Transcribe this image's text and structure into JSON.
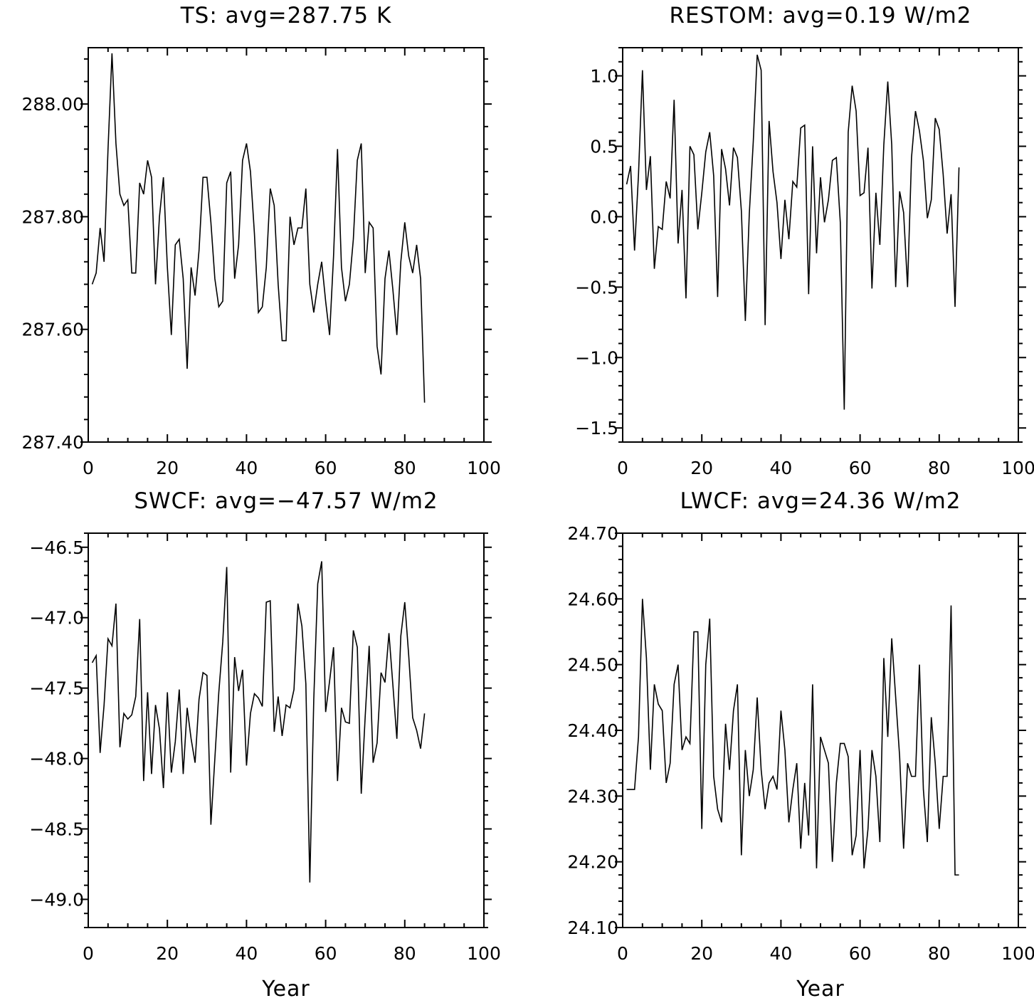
{
  "chart_data": [
    {
      "type": "line",
      "title": "TS: avg=287.75 K",
      "xlabel": "",
      "ylabel": "",
      "xlim": [
        0,
        100
      ],
      "ylim": [
        287.4,
        288.1
      ],
      "xticks": [
        0,
        20,
        40,
        60,
        80,
        100
      ],
      "xtick_labels": [
        "0",
        "20",
        "40",
        "60",
        "80",
        "100"
      ],
      "yticks": [
        287.4,
        287.6,
        287.8,
        288.0
      ],
      "ytick_labels": [
        "287.40",
        "287.60",
        "287.80",
        "288.00"
      ],
      "x_start": 1,
      "values": [
        287.68,
        287.7,
        287.78,
        287.72,
        287.92,
        288.09,
        287.93,
        287.84,
        287.82,
        287.83,
        287.7,
        287.7,
        287.86,
        287.84,
        287.9,
        287.87,
        287.68,
        287.8,
        287.87,
        287.71,
        287.59,
        287.75,
        287.76,
        287.69,
        287.53,
        287.71,
        287.66,
        287.74,
        287.87,
        287.87,
        287.79,
        287.69,
        287.64,
        287.65,
        287.86,
        287.88,
        287.69,
        287.75,
        287.9,
        287.93,
        287.88,
        287.77,
        287.63,
        287.64,
        287.71,
        287.85,
        287.82,
        287.68,
        287.58,
        287.58,
        287.8,
        287.75,
        287.78,
        287.78,
        287.85,
        287.68,
        287.63,
        287.68,
        287.72,
        287.65,
        287.59,
        287.73,
        287.92,
        287.71,
        287.65,
        287.68,
        287.76,
        287.9,
        287.93,
        287.7,
        287.79,
        287.78,
        287.57,
        287.52,
        287.69,
        287.74,
        287.67,
        287.59,
        287.72,
        287.79,
        287.73,
        287.7,
        287.75,
        287.69,
        287.47
      ]
    },
    {
      "type": "line",
      "title": "RESTOM: avg=0.19 W/m2",
      "xlabel": "",
      "ylabel": "",
      "xlim": [
        0,
        100
      ],
      "ylim": [
        -1.6,
        1.2
      ],
      "xticks": [
        0,
        20,
        40,
        60,
        80,
        100
      ],
      "xtick_labels": [
        "0",
        "20",
        "40",
        "60",
        "80",
        "100"
      ],
      "yticks": [
        -1.5,
        -1.0,
        -0.5,
        0.0,
        0.5,
        1.0
      ],
      "ytick_labels": [
        "−1.5",
        "−1.0",
        "−0.5",
        "0.0",
        "0.5",
        "1.0"
      ],
      "x_start": 1,
      "values": [
        0.23,
        0.36,
        -0.24,
        0.3,
        1.04,
        0.19,
        0.43,
        -0.37,
        -0.07,
        -0.09,
        0.25,
        0.13,
        0.83,
        -0.19,
        0.19,
        -0.58,
        0.5,
        0.44,
        -0.09,
        0.17,
        0.46,
        0.6,
        0.29,
        -0.57,
        0.48,
        0.34,
        0.08,
        0.49,
        0.42,
        0.04,
        -0.74,
        0.02,
        0.53,
        1.15,
        1.04,
        -0.77,
        0.68,
        0.32,
        0.1,
        -0.3,
        0.12,
        -0.16,
        0.25,
        0.21,
        0.63,
        0.65,
        -0.55,
        0.5,
        -0.26,
        0.28,
        -0.04,
        0.12,
        0.4,
        0.42,
        -0.04,
        -1.37,
        0.6,
        0.93,
        0.75,
        0.15,
        0.17,
        0.49,
        -0.51,
        0.17,
        -0.2,
        0.51,
        0.96,
        0.51,
        -0.5,
        0.18,
        0.03,
        -0.5,
        0.42,
        0.75,
        0.61,
        0.4,
        -0.01,
        0.12,
        0.7,
        0.62,
        0.3,
        -0.12,
        0.16,
        -0.64,
        0.35
      ]
    },
    {
      "type": "line",
      "title": "SWCF: avg=−47.57 W/m2",
      "xlabel": "Year",
      "ylabel": "",
      "xlim": [
        0,
        100
      ],
      "ylim": [
        -49.2,
        -46.4
      ],
      "xticks": [
        0,
        20,
        40,
        60,
        80,
        100
      ],
      "xtick_labels": [
        "0",
        "20",
        "40",
        "60",
        "80",
        "100"
      ],
      "yticks": [
        -49.0,
        -48.5,
        -48.0,
        -47.5,
        -47.0,
        -46.5
      ],
      "ytick_labels": [
        "−49.0",
        "−48.5",
        "−48.0",
        "−47.5",
        "−47.0",
        "−46.5"
      ],
      "x_start": 1,
      "values": [
        -47.32,
        -47.27,
        -47.96,
        -47.62,
        -47.15,
        -47.2,
        -46.9,
        -47.92,
        -47.68,
        -47.72,
        -47.69,
        -47.56,
        -47.01,
        -48.16,
        -47.53,
        -48.11,
        -47.62,
        -47.79,
        -48.21,
        -47.53,
        -48.1,
        -47.88,
        -47.51,
        -48.11,
        -47.64,
        -47.86,
        -48.03,
        -47.58,
        -47.39,
        -47.41,
        -48.47,
        -48.0,
        -47.53,
        -47.17,
        -46.64,
        -48.1,
        -47.28,
        -47.52,
        -47.37,
        -48.05,
        -47.68,
        -47.54,
        -47.57,
        -47.63,
        -46.89,
        -46.88,
        -47.81,
        -47.56,
        -47.84,
        -47.62,
        -47.64,
        -47.51,
        -46.9,
        -47.06,
        -47.47,
        -48.88,
        -47.58,
        -46.76,
        -46.6,
        -47.67,
        -47.45,
        -47.21,
        -48.16,
        -47.64,
        -47.74,
        -47.75,
        -47.09,
        -47.21,
        -48.25,
        -47.7,
        -47.2,
        -48.03,
        -47.89,
        -47.39,
        -47.46,
        -47.11,
        -47.48,
        -47.86,
        -47.13,
        -46.89,
        -47.27,
        -47.71,
        -47.8,
        -47.93,
        -47.68
      ]
    },
    {
      "type": "line",
      "title": "LWCF: avg=24.36 W/m2",
      "xlabel": "Year",
      "ylabel": "",
      "xlim": [
        0,
        100
      ],
      "ylim": [
        24.1,
        24.7
      ],
      "xticks": [
        0,
        20,
        40,
        60,
        80,
        100
      ],
      "xtick_labels": [
        "0",
        "20",
        "40",
        "60",
        "80",
        "100"
      ],
      "yticks": [
        24.1,
        24.2,
        24.3,
        24.4,
        24.5,
        24.6,
        24.7
      ],
      "ytick_labels": [
        "24.10",
        "24.20",
        "24.30",
        "24.40",
        "24.50",
        "24.60",
        "24.70"
      ],
      "x_start": 1,
      "values": [
        24.31,
        24.31,
        24.31,
        24.39,
        24.6,
        24.51,
        24.34,
        24.47,
        24.44,
        24.43,
        24.32,
        24.35,
        24.47,
        24.5,
        24.37,
        24.39,
        24.38,
        24.55,
        24.55,
        24.25,
        24.5,
        24.57,
        24.33,
        24.28,
        24.26,
        24.41,
        24.34,
        24.43,
        24.47,
        24.21,
        24.37,
        24.3,
        24.34,
        24.45,
        24.34,
        24.28,
        24.32,
        24.33,
        24.31,
        24.43,
        24.37,
        24.26,
        24.31,
        24.35,
        24.22,
        24.32,
        24.24,
        24.47,
        24.19,
        24.39,
        24.37,
        24.35,
        24.2,
        24.32,
        24.38,
        24.38,
        24.36,
        24.21,
        24.24,
        24.37,
        24.19,
        24.25,
        24.37,
        24.33,
        24.23,
        24.51,
        24.39,
        24.54,
        24.45,
        24.36,
        24.22,
        24.35,
        24.33,
        24.33,
        24.5,
        24.31,
        24.23,
        24.42,
        24.35,
        24.25,
        24.33,
        24.33,
        24.59,
        24.18,
        24.18
      ]
    }
  ]
}
